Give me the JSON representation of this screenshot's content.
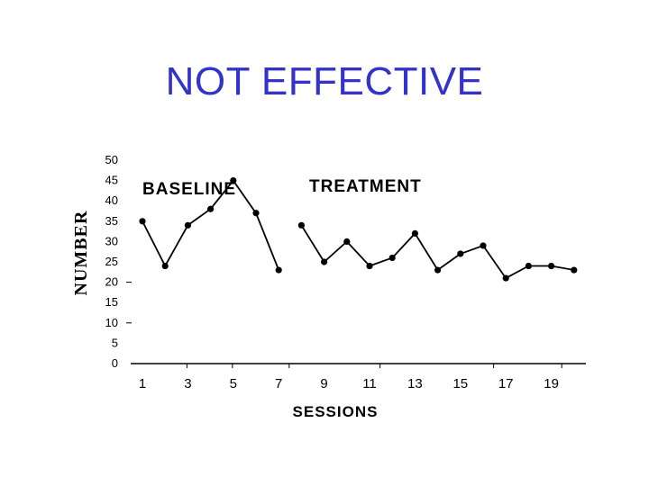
{
  "chart_data": {
    "type": "line",
    "title": "NOT EFFECTIVE",
    "xlabel": "SESSIONS",
    "ylabel": "NUMBER",
    "ylim": [
      0,
      50
    ],
    "xlim": [
      1,
      20
    ],
    "y_ticks": [
      "0",
      "5",
      "10",
      "15",
      "20",
      "25",
      "30",
      "35",
      "40",
      "45",
      "50"
    ],
    "x_ticks": [
      "1",
      "3",
      "5",
      "7",
      "9",
      "11",
      "13",
      "15",
      "17",
      "19"
    ],
    "phases": [
      {
        "label": "BASELINE",
        "x": [
          1,
          2,
          3,
          4,
          5,
          6,
          7
        ],
        "y": [
          35,
          24,
          34,
          38,
          45,
          37,
          23
        ]
      },
      {
        "label": "TREATMENT",
        "x": [
          8,
          9,
          10,
          11,
          12,
          13,
          14,
          15,
          16,
          17,
          18,
          19,
          20
        ],
        "y": [
          34,
          25,
          30,
          24,
          26,
          32,
          23,
          27,
          29,
          21,
          24,
          24,
          23
        ]
      }
    ],
    "grid": false,
    "color": "#000000",
    "title_color": "#3333cc"
  }
}
